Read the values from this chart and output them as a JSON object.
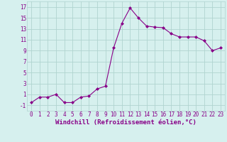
{
  "x": [
    0,
    1,
    2,
    3,
    4,
    5,
    6,
    7,
    8,
    9,
    10,
    11,
    12,
    13,
    14,
    15,
    16,
    17,
    18,
    19,
    20,
    21,
    22,
    23
  ],
  "y": [
    -0.5,
    0.5,
    0.5,
    1.0,
    -0.5,
    -0.5,
    0.5,
    0.7,
    2.0,
    2.5,
    9.5,
    14.0,
    16.8,
    15.0,
    13.5,
    13.3,
    13.2,
    12.1,
    11.5,
    11.5,
    11.5,
    10.8,
    9.0,
    9.5
  ],
  "line_color": "#880088",
  "marker": "D",
  "marker_size": 2.0,
  "xlabel": "Windchill (Refroidissement éolien,°C)",
  "xlim": [
    -0.5,
    23.5
  ],
  "ylim": [
    -2,
    18
  ],
  "yticks": [
    -1,
    1,
    3,
    5,
    7,
    9,
    11,
    13,
    15,
    17
  ],
  "xticks": [
    0,
    1,
    2,
    3,
    4,
    5,
    6,
    7,
    8,
    9,
    10,
    11,
    12,
    13,
    14,
    15,
    16,
    17,
    18,
    19,
    20,
    21,
    22,
    23
  ],
  "bg_color": "#d6f0ee",
  "grid_color": "#b0d4d0",
  "label_fontsize": 6.5,
  "tick_fontsize": 5.5
}
